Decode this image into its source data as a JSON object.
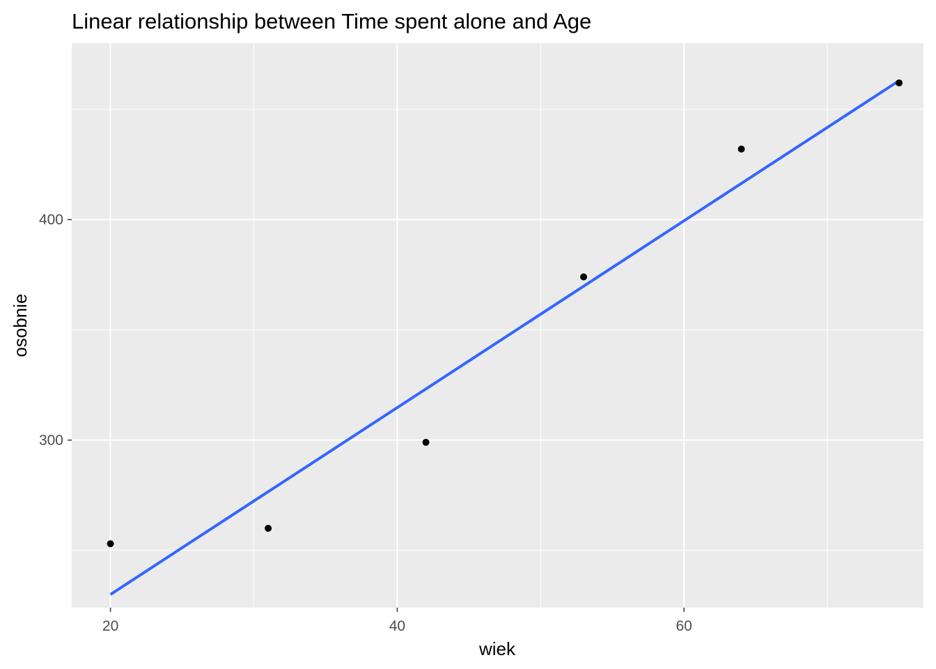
{
  "chart_data": {
    "type": "scatter",
    "title": "Linear relationship between Time spent alone and Age",
    "xlabel": "wiek",
    "ylabel": "osobnie",
    "xlim": [
      17.3,
      76.7
    ],
    "ylim": [
      224,
      480
    ],
    "x_ticks": [
      20,
      40,
      60
    ],
    "x_tick_labels": [
      "20",
      "40",
      "60"
    ],
    "x_minor_ticks": [
      30,
      50,
      70
    ],
    "y_ticks": [
      300,
      400
    ],
    "y_tick_labels": [
      "300",
      "400"
    ],
    "y_minor_ticks": [
      250,
      350,
      450
    ],
    "grid": true,
    "background": "#EBEBEB",
    "point_color": "#000000",
    "line_color": "#3366FF",
    "series": [
      {
        "type": "points",
        "x": [
          20,
          31,
          42,
          53,
          64,
          75
        ],
        "y": [
          253,
          260,
          299,
          374,
          432,
          462
        ]
      },
      {
        "type": "line",
        "x": [
          20,
          75
        ],
        "y": [
          230,
          463
        ]
      }
    ]
  }
}
